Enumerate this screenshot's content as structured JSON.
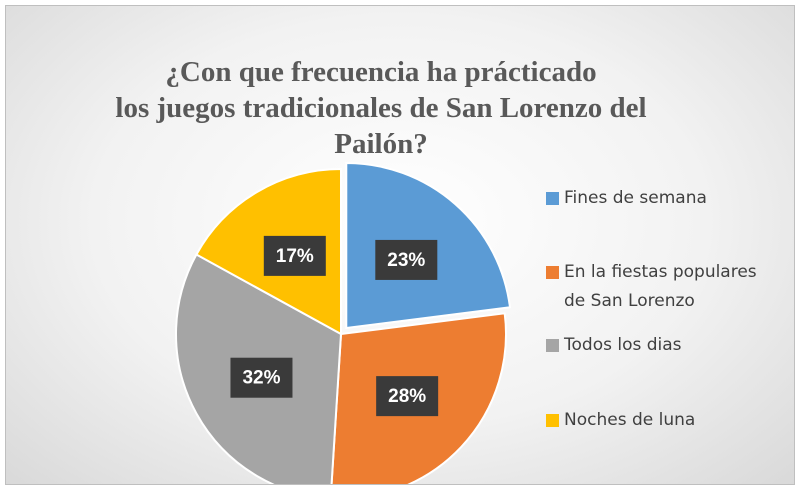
{
  "chart_data": {
    "type": "pie",
    "title": [
      "¿Con que frecuencia ha prácticado",
      "los  juegos tradicionales de San Lorenzo del",
      "Pailón?"
    ],
    "categories": [
      "Fines de semana",
      "En la fiestas populares de San Lorenzo",
      "Todos los dias",
      "Noches de luna"
    ],
    "values": [
      23,
      28,
      32,
      17
    ],
    "value_labels": [
      "23%",
      "28%",
      "32%",
      "17%"
    ],
    "colors": [
      "#5b9bd5",
      "#ed7d31",
      "#a5a5a5",
      "#ffc000"
    ],
    "legend": "right"
  }
}
